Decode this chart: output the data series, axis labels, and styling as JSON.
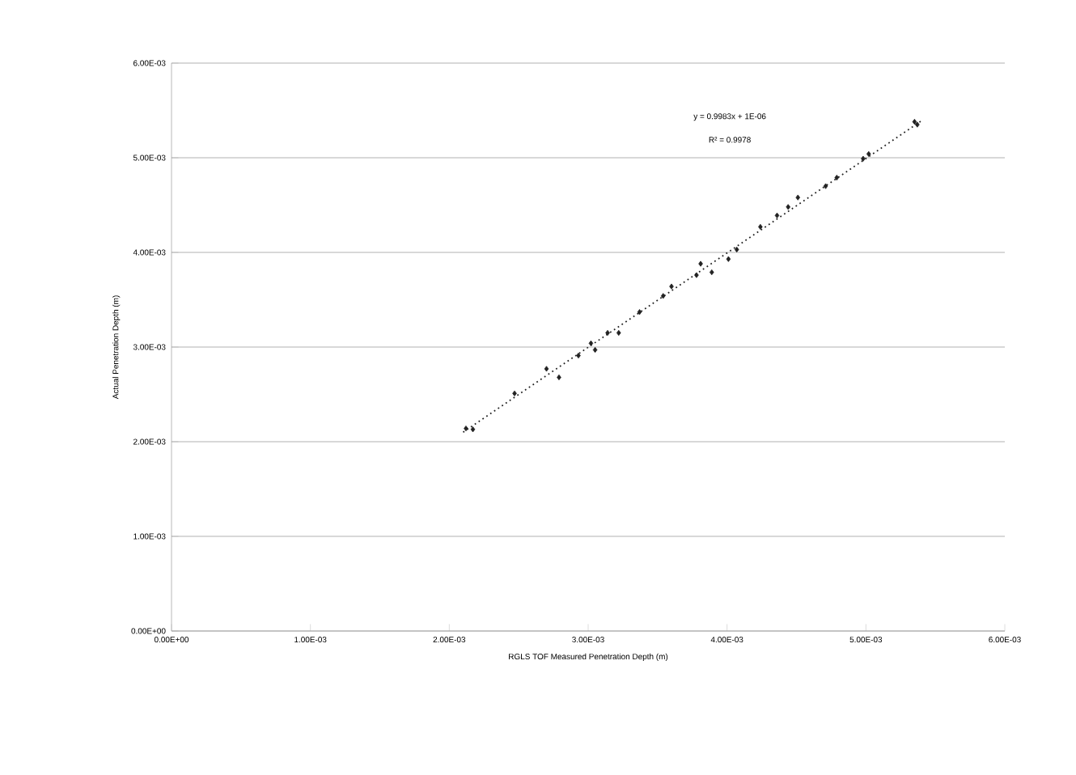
{
  "chart_data": {
    "type": "scatter",
    "xlabel": "RGLS TOF Measured Penetration Depth (m)",
    "ylabel": "Actual Penetration Depth (m)",
    "annotations": [
      "y = 0.9983x + 1E-06",
      "R² = 0.9978"
    ],
    "xlim": [
      0,
      0.006
    ],
    "ylim": [
      0,
      0.006
    ],
    "xticks": [
      {
        "value": 0,
        "label": "0.00E+00"
      },
      {
        "value": 0.001,
        "label": "1.00E-03"
      },
      {
        "value": 0.002,
        "label": "2.00E-03"
      },
      {
        "value": 0.003,
        "label": "3.00E-03"
      },
      {
        "value": 0.004,
        "label": "4.00E-03"
      },
      {
        "value": 0.005,
        "label": "5.00E-03"
      },
      {
        "value": 0.006,
        "label": "6.00E-03"
      }
    ],
    "yticks": [
      {
        "value": 0,
        "label": "0.00E+00"
      },
      {
        "value": 0.001,
        "label": "1.00E-03"
      },
      {
        "value": 0.002,
        "label": "2.00E-03"
      },
      {
        "value": 0.003,
        "label": "3.00E-03"
      },
      {
        "value": 0.004,
        "label": "4.00E-03"
      },
      {
        "value": 0.005,
        "label": "5.00E-03"
      },
      {
        "value": 0.006,
        "label": "6.00E-03"
      }
    ],
    "grid": "y",
    "marker": "diamond",
    "series": [
      {
        "color": "#222222",
        "x": [
          0.00212,
          0.00217,
          0.00247,
          0.0027,
          0.00279,
          0.00293,
          0.00302,
          0.00305,
          0.00314,
          0.00322,
          0.00337,
          0.00354,
          0.0036,
          0.00378,
          0.00381,
          0.00389,
          0.00401,
          0.00407,
          0.00424,
          0.00436,
          0.00444,
          0.00451,
          0.00471,
          0.00479,
          0.00498,
          0.00502,
          0.00535,
          0.00537
        ],
        "values": [
          0.00214,
          0.00213,
          0.00251,
          0.00277,
          0.00268,
          0.00291,
          0.00304,
          0.00297,
          0.00315,
          0.00315,
          0.00337,
          0.00354,
          0.00364,
          0.00376,
          0.00388,
          0.00379,
          0.00393,
          0.00403,
          0.00427,
          0.00439,
          0.00448,
          0.00458,
          0.0047,
          0.00479,
          0.00499,
          0.00504,
          0.00538,
          0.00535
        ]
      },
      {
        "type": "line",
        "color": "#222222",
        "marker": "none",
        "line_style": "dotted",
        "x": [
          0.0021,
          0.0054
        ],
        "values": [
          0.0021,
          0.00539
        ]
      }
    ]
  }
}
